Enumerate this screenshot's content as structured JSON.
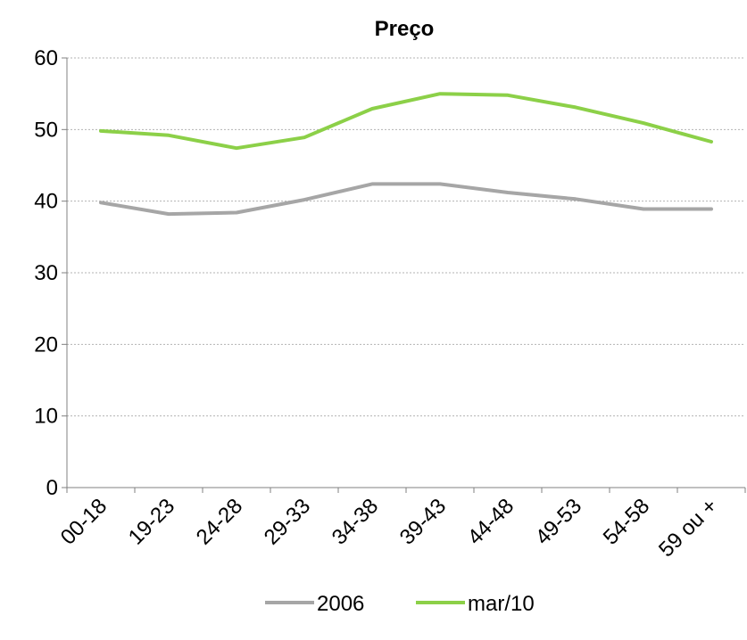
{
  "chart_data": {
    "type": "line",
    "title": "Preço",
    "xlabel": "",
    "ylabel": "",
    "categories": [
      "00-18",
      "19-23",
      "24-28",
      "29-33",
      "34-38",
      "39-43",
      "44-48",
      "49-53",
      "54-58",
      "59 ou +"
    ],
    "ylim": [
      0,
      60
    ],
    "yticks": [
      0,
      10,
      20,
      30,
      40,
      50,
      60
    ],
    "grid": true,
    "legend_position": "bottom",
    "series": [
      {
        "name": "2006",
        "color": "#a6a6a6",
        "values": [
          39.8,
          38.2,
          38.4,
          40.2,
          42.4,
          42.4,
          41.2,
          40.3,
          38.9,
          38.9
        ]
      },
      {
        "name": "mar/10",
        "color": "#8cd048",
        "values": [
          49.8,
          49.2,
          47.4,
          48.9,
          52.9,
          55.0,
          54.8,
          53.1,
          50.9,
          48.3
        ]
      }
    ]
  }
}
